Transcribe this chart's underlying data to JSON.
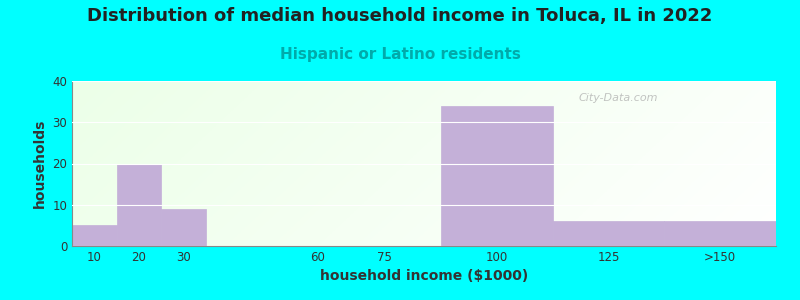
{
  "title": "Distribution of median household income in Toluca, IL in 2022",
  "subtitle": "Hispanic or Latino residents",
  "xlabel": "household income ($1000)",
  "ylabel": "households",
  "background_color": "#00FFFF",
  "bar_color": "#C4B0D8",
  "bar_edge_color": "#C4B0D8",
  "x_tick_positions": [
    10,
    20,
    30,
    60,
    75,
    100,
    125,
    150
  ],
  "x_tick_labels": [
    "10",
    "20",
    "30",
    "60",
    "75",
    "100",
    "125",
    ">150"
  ],
  "bar_lefts": [
    5,
    15,
    25,
    65,
    87.5,
    112.5,
    137.5
  ],
  "bar_widths": [
    10,
    10,
    10,
    15,
    25,
    25,
    25
  ],
  "bar_heights": [
    5,
    20,
    9,
    0,
    34,
    6,
    6
  ],
  "ylim": [
    0,
    40
  ],
  "xlim": [
    5,
    162.5
  ],
  "yticks": [
    0,
    10,
    20,
    30,
    40
  ],
  "watermark": "City-Data.com",
  "title_fontsize": 13,
  "subtitle_fontsize": 11,
  "subtitle_color": "#00AAAA",
  "title_color": "#222222"
}
